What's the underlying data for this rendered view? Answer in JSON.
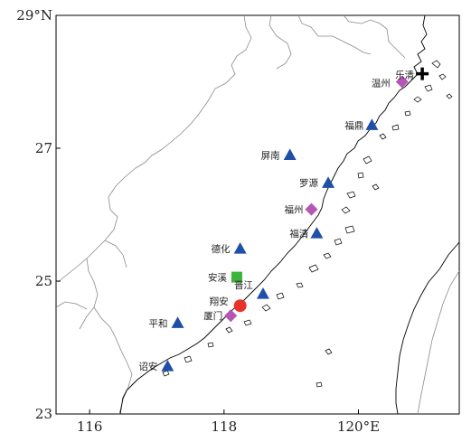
{
  "map": {
    "lat_labels": [
      {
        "lat": 29,
        "text": "29°N"
      },
      {
        "lat": 27,
        "text": "27"
      },
      {
        "lat": 25,
        "text": "25"
      },
      {
        "lat": 23,
        "text": "23"
      }
    ],
    "lon_labels": [
      {
        "lon": 116,
        "text": "116"
      },
      {
        "lon": 118,
        "text": "118"
      },
      {
        "lon": 120,
        "text": "120°E"
      }
    ],
    "extent": {
      "lon_min": 115.5,
      "lon_max": 121.5,
      "lat_min": 23,
      "lat_max": 29
    },
    "colors": {
      "triangle": "#1f4fa8",
      "diamond": "#b555b5",
      "square": "#3cb43c",
      "circle": "#e8322a",
      "cross": "#000000"
    },
    "places": [
      {
        "label": "温州",
        "lon": 120.65,
        "lat": 28.0,
        "symbol": "diamond"
      },
      {
        "label": "乐清",
        "lon": 120.95,
        "lat": 28.12,
        "symbol": "cross"
      },
      {
        "label": "福鼎",
        "lon": 120.2,
        "lat": 27.35,
        "symbol": "triangle"
      },
      {
        "label": "屏南",
        "lon": 118.98,
        "lat": 26.9,
        "symbol": "triangle"
      },
      {
        "label": "罗源",
        "lon": 119.55,
        "lat": 26.48,
        "symbol": "triangle"
      },
      {
        "label": "福州",
        "lon": 119.3,
        "lat": 26.08,
        "symbol": "diamond"
      },
      {
        "label": "福清",
        "lon": 119.38,
        "lat": 25.72,
        "symbol": "triangle"
      },
      {
        "label": "德化",
        "lon": 118.24,
        "lat": 25.49,
        "symbol": "triangle"
      },
      {
        "label": "安溪",
        "lon": 118.19,
        "lat": 25.06,
        "symbol": "square"
      },
      {
        "label": "晋江",
        "lon": 118.58,
        "lat": 24.81,
        "symbol": "triangle"
      },
      {
        "label": "翔安",
        "lon": 118.24,
        "lat": 24.63,
        "symbol": "circle"
      },
      {
        "label": "厦门",
        "lon": 118.1,
        "lat": 24.48,
        "symbol": "diamond"
      },
      {
        "label": "平和",
        "lon": 117.31,
        "lat": 24.37,
        "symbol": "triangle"
      },
      {
        "label": "诏安",
        "lon": 117.16,
        "lat": 23.72,
        "symbol": "triangle"
      }
    ]
  }
}
